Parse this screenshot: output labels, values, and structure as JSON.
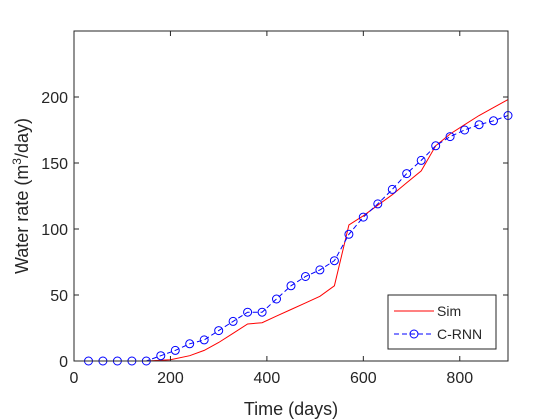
{
  "chart_data": {
    "type": "line",
    "xlabel": "Time (days)",
    "ylabel": {
      "prefix": "Water rate (m",
      "sup": "3",
      "suffix": "/day)"
    },
    "xlim": [
      0,
      900
    ],
    "ylim": [
      0,
      250
    ],
    "xticks": [
      0,
      200,
      400,
      600,
      800
    ],
    "yticks": [
      0,
      50,
      100,
      150,
      200
    ],
    "grid": false,
    "legend_position": "bottom-right",
    "colors": {
      "sim": "#ff0000",
      "crnn": "#0000ff",
      "axis": "#262626"
    },
    "series": [
      {
        "name": "Sim",
        "style": "solid-line",
        "x": [
          30,
          150,
          180,
          200,
          240,
          270,
          300,
          330,
          360,
          390,
          420,
          450,
          480,
          510,
          540,
          570,
          600,
          630,
          660,
          690,
          720,
          750,
          780,
          810,
          840,
          870,
          900
        ],
        "y": [
          0,
          0,
          0.5,
          1,
          4,
          8,
          14,
          21,
          28,
          29,
          34,
          39,
          44,
          49,
          57,
          103,
          110,
          118,
          126,
          135,
          144,
          163,
          172,
          179,
          186,
          192,
          198
        ]
      },
      {
        "name": "C-RNN",
        "style": "dashed-line-circle-markers",
        "x": [
          30,
          60,
          90,
          120,
          150,
          180,
          210,
          240,
          270,
          300,
          330,
          360,
          390,
          420,
          450,
          480,
          510,
          540,
          570,
          600,
          630,
          660,
          690,
          720,
          750,
          780,
          810,
          840,
          870,
          900
        ],
        "y": [
          0,
          0,
          0,
          0,
          0,
          4,
          8,
          13,
          16,
          23,
          30,
          37,
          37,
          47,
          57,
          64,
          69,
          76,
          96,
          109,
          119,
          130,
          142,
          152,
          163,
          170,
          175,
          179,
          182,
          186
        ]
      }
    ],
    "legend": [
      "Sim",
      "C-RNN"
    ]
  }
}
